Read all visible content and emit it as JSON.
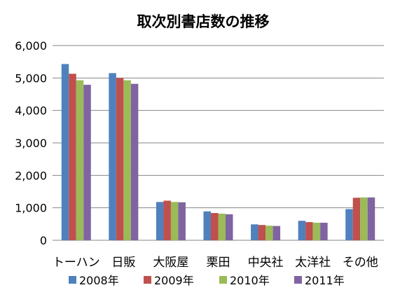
{
  "chart_data": {
    "type": "bar",
    "title": "取次別書店数の推移",
    "categories": [
      "トーハン",
      "日販",
      "大阪屋",
      "栗田",
      "中央社",
      "太洋社",
      "その他"
    ],
    "series": [
      {
        "name": "2008年",
        "color": "#4F81BD",
        "values": [
          5430,
          5150,
          1180,
          890,
          490,
          600,
          960
        ]
      },
      {
        "name": "2009年",
        "color": "#C0504D",
        "values": [
          5130,
          5000,
          1220,
          840,
          470,
          560,
          1310
        ]
      },
      {
        "name": "2010年",
        "color": "#9BBB59",
        "values": [
          4930,
          4930,
          1180,
          820,
          450,
          540,
          1320
        ]
      },
      {
        "name": "2011年",
        "color": "#8064A2",
        "values": [
          4790,
          4820,
          1170,
          800,
          440,
          540,
          1320
        ]
      }
    ],
    "ylim": [
      0,
      6000
    ],
    "yticks": [
      0,
      1000,
      2000,
      3000,
      4000,
      5000,
      6000
    ],
    "ytick_labels": [
      "0",
      "1,000",
      "2,000",
      "3,000",
      "4,000",
      "5,000",
      "6,000"
    ],
    "grid": true,
    "legend_position": "bottom",
    "xlabel": "",
    "ylabel": ""
  }
}
